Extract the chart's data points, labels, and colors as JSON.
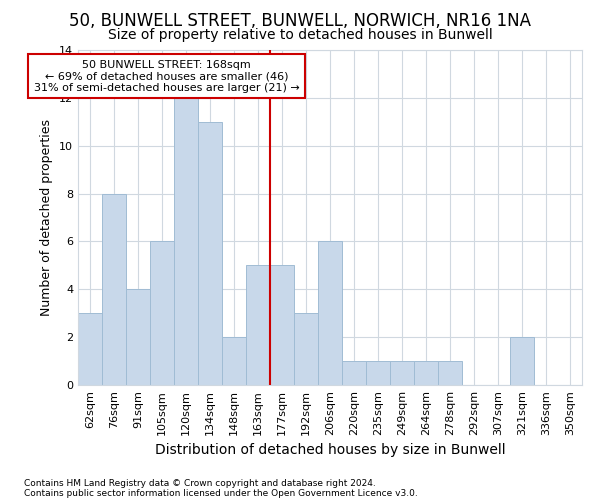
{
  "title1": "50, BUNWELL STREET, BUNWELL, NORWICH, NR16 1NA",
  "title2": "Size of property relative to detached houses in Bunwell",
  "xlabel": "Distribution of detached houses by size in Bunwell",
  "ylabel": "Number of detached properties",
  "bar_labels": [
    "62sqm",
    "76sqm",
    "91sqm",
    "105sqm",
    "120sqm",
    "134sqm",
    "148sqm",
    "163sqm",
    "177sqm",
    "192sqm",
    "206sqm",
    "220sqm",
    "235sqm",
    "249sqm",
    "264sqm",
    "278sqm",
    "292sqm",
    "307sqm",
    "321sqm",
    "336sqm",
    "350sqm"
  ],
  "bar_values": [
    3,
    8,
    4,
    6,
    12,
    11,
    2,
    5,
    5,
    3,
    6,
    1,
    1,
    1,
    1,
    1,
    0,
    0,
    2,
    0,
    0
  ],
  "bar_color": "#c8d8ea",
  "bar_edgecolor": "#a0bcd4",
  "ylim": [
    0,
    14
  ],
  "yticks": [
    0,
    2,
    4,
    6,
    8,
    10,
    12,
    14
  ],
  "property_bin_index": 7,
  "vline_color": "#cc0000",
  "annotation_text": "50 BUNWELL STREET: 168sqm\n← 69% of detached houses are smaller (46)\n31% of semi-detached houses are larger (21) →",
  "annotation_box_color": "#ffffff",
  "annotation_border_color": "#cc0000",
  "footnote1": "Contains HM Land Registry data © Crown copyright and database right 2024.",
  "footnote2": "Contains public sector information licensed under the Open Government Licence v3.0.",
  "background_color": "#ffffff",
  "grid_color": "#d0d8e0",
  "title_fontsize": 12,
  "subtitle_fontsize": 10,
  "tick_fontsize": 8,
  "ylabel_fontsize": 9,
  "xlabel_fontsize": 10
}
